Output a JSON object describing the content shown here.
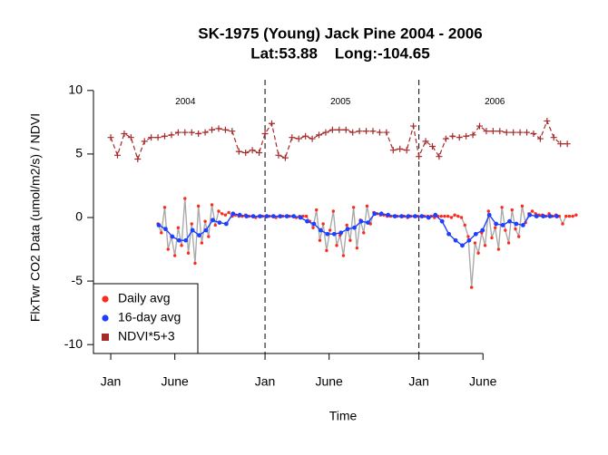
{
  "chart_data": {
    "type": "line",
    "title": "SK-1975 (Young) Jack Pine 2004 - 2006",
    "subtitle": "Lat:53.88    Long:-104.65",
    "x_label": "Time",
    "y_label": "FlxTwr CO2 Data (umol/m2/s) / NDVI",
    "xlim": [
      -41,
      1115
    ],
    "ylim": [
      -10.7,
      10.7
    ],
    "xticks": [
      {
        "value": 0,
        "label": "Jan"
      },
      {
        "value": 152,
        "label": "June"
      },
      {
        "value": 366,
        "label": "Jan"
      },
      {
        "value": 518,
        "label": "June"
      },
      {
        "value": 731,
        "label": "Jan"
      },
      {
        "value": 883,
        "label": "June"
      }
    ],
    "yticks": [
      10,
      5,
      0,
      -5,
      -10
    ],
    "vlines": [
      366,
      731
    ],
    "annotations": [
      {
        "text": "2004",
        "x": 177,
        "y": 9.1
      },
      {
        "text": "2005",
        "x": 545,
        "y": 9.1
      },
      {
        "text": "2006",
        "x": 911,
        "y": 9.1
      }
    ],
    "legend": "bottomleft",
    "series": [
      {
        "name": "Daily avg",
        "color": "#ff2a1a",
        "line_color": "#aaaaaa",
        "marker": "dot",
        "x": [
          112,
          120,
          128,
          136,
          144,
          152,
          160,
          168,
          176,
          184,
          192,
          200,
          208,
          216,
          224,
          232,
          240,
          248,
          256,
          264,
          272,
          280,
          288,
          296,
          304,
          312,
          320,
          328,
          336,
          344,
          352,
          360,
          368,
          376,
          384,
          392,
          400,
          408,
          416,
          424,
          432,
          440,
          448,
          456,
          464,
          472,
          480,
          488,
          496,
          504,
          512,
          520,
          528,
          536,
          544,
          552,
          560,
          568,
          576,
          584,
          592,
          600,
          608,
          616,
          624,
          632,
          640,
          648,
          656,
          664,
          672,
          680,
          688,
          696,
          704,
          712,
          720,
          728,
          736,
          744,
          752,
          760,
          768,
          776,
          784,
          792,
          800,
          808,
          816,
          824,
          832,
          840,
          848,
          856,
          864,
          872,
          880,
          888,
          896,
          904,
          912,
          920,
          928,
          936,
          944,
          952,
          960,
          968,
          976,
          984,
          992,
          1000,
          1008,
          1016,
          1024,
          1032,
          1040,
          1048,
          1056,
          1064,
          1072,
          1080,
          1088,
          1096,
          1104
        ],
        "values": [
          -0.5,
          -1.2,
          0.8,
          -2.5,
          -1.5,
          -3.0,
          -0.8,
          -2.2,
          1.5,
          -2.8,
          -0.5,
          -3.6,
          0.9,
          -2.0,
          -0.3,
          -1.5,
          1.0,
          -0.6,
          0.5,
          0.3,
          0.2,
          0.4,
          0.1,
          0.2,
          0.1,
          0.1,
          0.2,
          0.1,
          0.1,
          0.0,
          0.1,
          0.1,
          0.1,
          0.1,
          0.1,
          0.0,
          0.1,
          0.1,
          0.1,
          0.1,
          0.1,
          0.0,
          0.1,
          0.1,
          0.1,
          -0.3,
          -0.8,
          0.6,
          -1.8,
          -0.5,
          -2.6,
          -1.0,
          0.5,
          -2.2,
          -1.4,
          -3.0,
          -0.6,
          -1.8,
          0.8,
          -2.4,
          -0.2,
          -1.2,
          0.9,
          -0.5,
          0.4,
          0.3,
          0.2,
          0.2,
          0.1,
          0.1,
          0.1,
          0.1,
          0.1,
          0.1,
          0.0,
          0.1,
          0.1,
          0.1,
          0.1,
          0.1,
          0.1,
          0.1,
          0.0,
          0.1,
          0.1,
          0.1,
          0.1,
          0.0,
          0.2,
          0.1,
          0.0,
          -0.6,
          -1.5,
          -5.5,
          -2.0,
          -2.8,
          -1.2,
          -2.2,
          0.5,
          -1.6,
          -0.8,
          -2.5,
          0.8,
          -1.0,
          -2.0,
          0.6,
          -0.9,
          -1.5,
          0.9,
          -0.4,
          0.3,
          0.5,
          0.3,
          0.2,
          0.2,
          0.1,
          0.3,
          0.1,
          0.2,
          0.1,
          -0.5,
          0.1,
          0.1,
          0.1,
          0.2
        ]
      },
      {
        "name": "16-day avg",
        "color": "#1f3fff",
        "line_color": "#1f3fff",
        "marker": "dot",
        "x": [
          114,
          130,
          146,
          162,
          178,
          194,
          210,
          226,
          242,
          258,
          274,
          290,
          306,
          322,
          338,
          354,
          370,
          386,
          402,
          418,
          434,
          450,
          466,
          482,
          498,
          514,
          530,
          546,
          562,
          578,
          594,
          610,
          626,
          642,
          658,
          674,
          690,
          706,
          722,
          738,
          754,
          770,
          786,
          802,
          818,
          834,
          850,
          866,
          882,
          898,
          914,
          930,
          946,
          962,
          978,
          994,
          1010,
          1026,
          1042,
          1058
        ],
        "values": [
          -0.6,
          -0.9,
          -1.5,
          -1.8,
          -1.8,
          -1.0,
          -1.4,
          -1.0,
          -0.2,
          -0.4,
          -0.5,
          0.3,
          0.2,
          0.1,
          0.1,
          0.1,
          0.1,
          0.1,
          0.1,
          0.1,
          0.1,
          0.0,
          -0.3,
          -0.5,
          -1.0,
          -1.3,
          -1.3,
          -1.2,
          -0.9,
          -0.8,
          -0.3,
          -0.4,
          0.3,
          0.3,
          0.2,
          0.1,
          0.1,
          0.1,
          0.1,
          0.1,
          0.0,
          0.2,
          -0.3,
          -1.3,
          -1.8,
          -2.2,
          -1.8,
          -1.3,
          -1.0,
          0.2,
          -0.5,
          -0.6,
          -0.3,
          -0.5,
          -0.6,
          0.2,
          0.1,
          0.1,
          0.1,
          0.1
        ]
      },
      {
        "name": "NDVI*5+3",
        "color": "#a52a2a",
        "line_color": "#a52a2a",
        "marker": "plus",
        "dashed": true,
        "x": [
          0,
          16,
          32,
          48,
          64,
          80,
          96,
          112,
          128,
          144,
          160,
          176,
          192,
          208,
          224,
          240,
          256,
          272,
          288,
          304,
          320,
          336,
          352,
          366,
          382,
          398,
          414,
          430,
          446,
          462,
          478,
          494,
          510,
          526,
          542,
          558,
          574,
          590,
          606,
          622,
          638,
          654,
          670,
          686,
          702,
          718,
          731,
          747,
          763,
          779,
          795,
          811,
          827,
          843,
          859,
          875,
          891,
          907,
          923,
          939,
          955,
          971,
          987,
          1003,
          1019,
          1035,
          1051,
          1067,
          1083
        ],
        "values": [
          6.3,
          4.9,
          6.6,
          6.3,
          4.6,
          6.0,
          6.3,
          6.3,
          6.4,
          6.5,
          6.7,
          6.7,
          6.7,
          6.6,
          6.7,
          6.9,
          7.0,
          6.9,
          6.8,
          5.2,
          5.1,
          5.3,
          5.1,
          6.6,
          7.4,
          4.9,
          4.7,
          6.3,
          6.2,
          6.4,
          6.2,
          6.5,
          6.7,
          6.9,
          6.9,
          6.9,
          6.7,
          6.8,
          6.8,
          6.8,
          6.7,
          6.7,
          5.3,
          5.4,
          5.3,
          7.2,
          4.8,
          6.0,
          5.6,
          4.8,
          6.2,
          6.4,
          6.3,
          6.4,
          6.5,
          7.2,
          6.8,
          6.8,
          6.8,
          6.7,
          6.7,
          6.7,
          6.7,
          6.6,
          6.2,
          7.6,
          6.3,
          5.8,
          5.8
        ]
      }
    ]
  }
}
